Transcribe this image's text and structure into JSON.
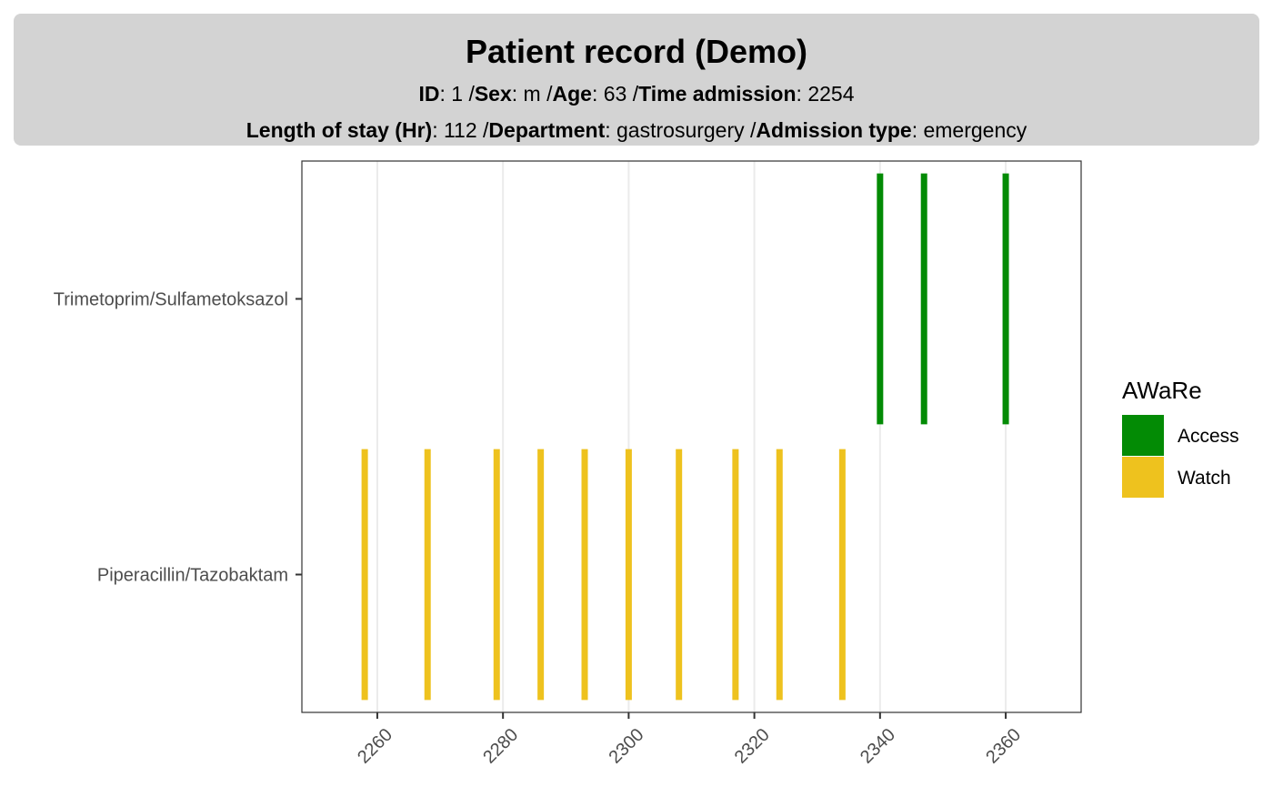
{
  "header": {
    "title": "Patient record (Demo)",
    "line1": [
      {
        "key": "ID",
        "value": ": 1 /"
      },
      {
        "key": "Sex",
        "value": ": m /"
      },
      {
        "key": "Age",
        "value": ": 63 /"
      },
      {
        "key": "Time admission",
        "value": ": 2254"
      }
    ],
    "line2": [
      {
        "key": "Length of stay (Hr)",
        "value": ": 112 /"
      },
      {
        "key": "Department",
        "value": ": gastrosurgery /"
      },
      {
        "key": "Admission type",
        "value": ": emergency"
      }
    ]
  },
  "colors": {
    "Access": "#038b05",
    "Watch": "#eec21e",
    "grid": "#ebebeb",
    "panel_border": "#333333",
    "header_bg": "#d3d3d3"
  },
  "chart_data": {
    "type": "segment",
    "categories": [
      "Piperacillin/Tazobaktam",
      "Trimetoprim/Sulfametoksazol"
    ],
    "xlim": [
      2248,
      2372
    ],
    "xticks": [
      2260,
      2280,
      2300,
      2320,
      2340,
      2360
    ],
    "grid": true,
    "legend": {
      "title": "AWaRe",
      "position": "right",
      "entries": [
        "Access",
        "Watch"
      ]
    },
    "series": [
      {
        "name": "Watch",
        "category": "Piperacillin/Tazobaktam",
        "x": [
          2258,
          2268,
          2279,
          2286,
          2293,
          2300,
          2308,
          2317,
          2324,
          2334
        ]
      },
      {
        "name": "Access",
        "category": "Trimetoprim/Sulfametoksazol",
        "x": [
          2340,
          2347,
          2360
        ]
      }
    ]
  }
}
